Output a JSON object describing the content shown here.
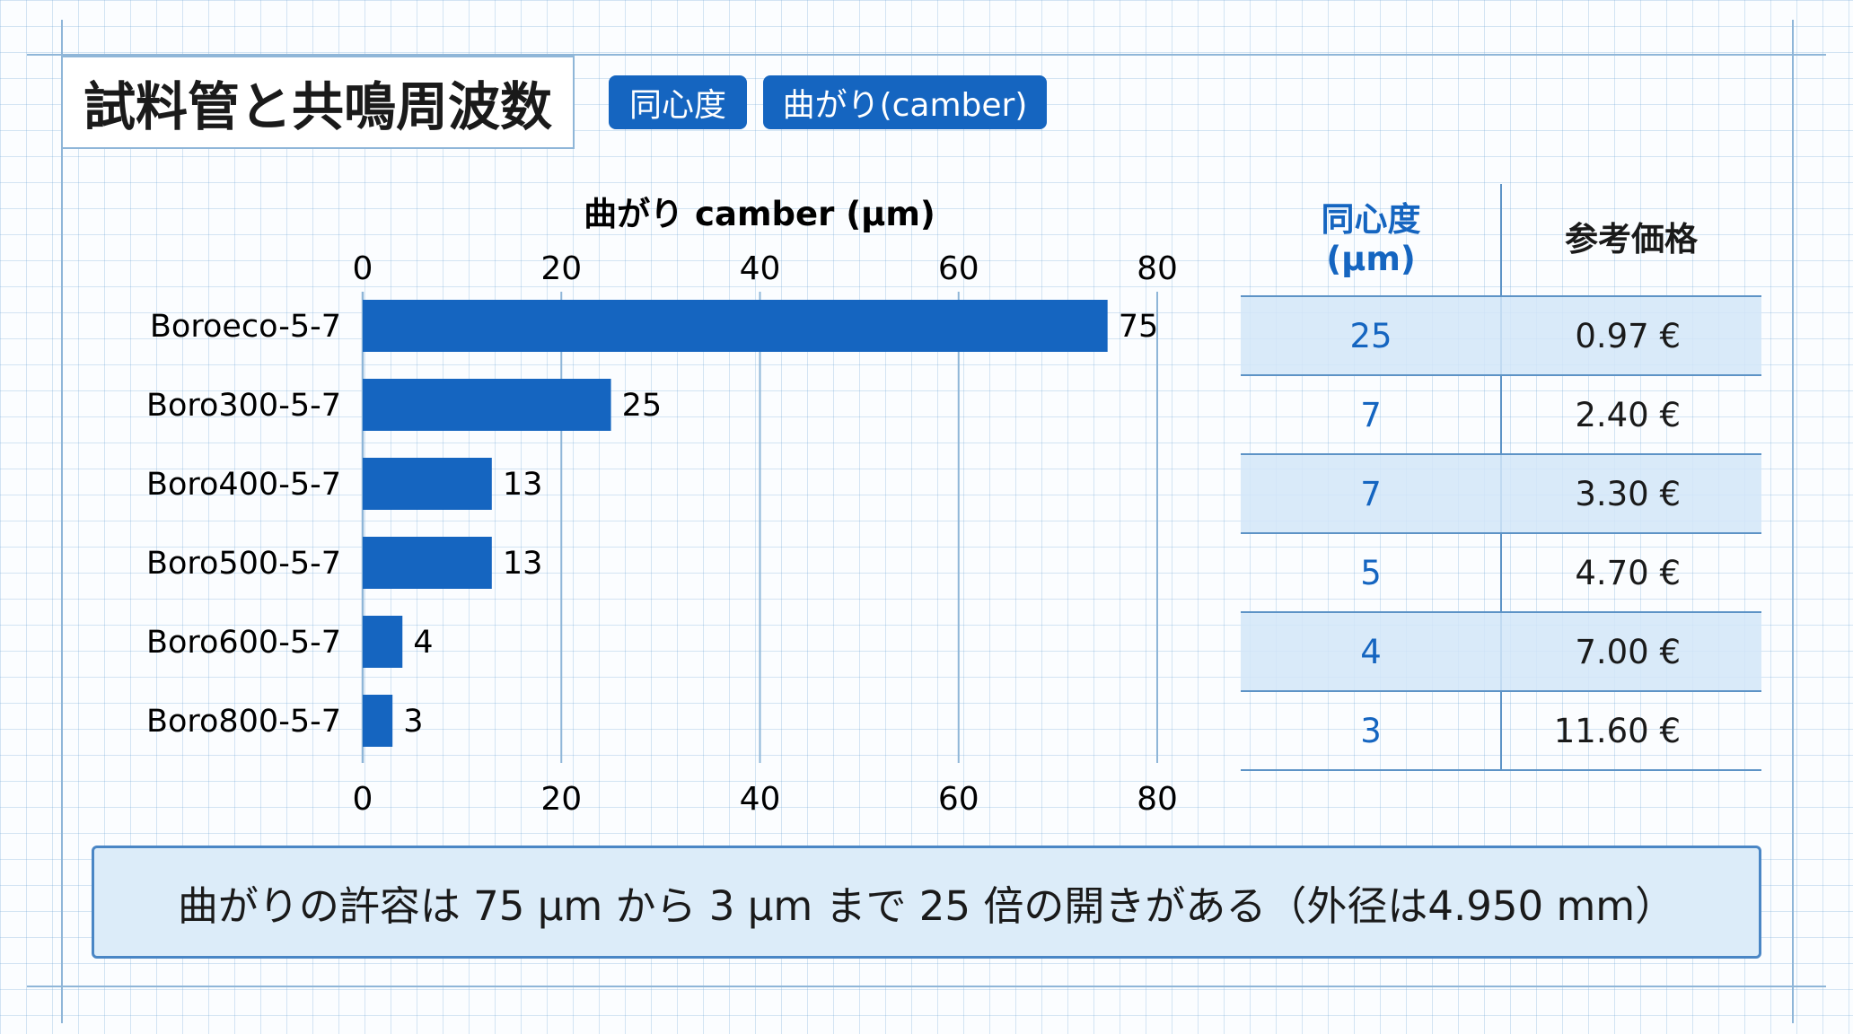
{
  "title": "試料管と共鳴周波数",
  "tabs": [
    {
      "label": "同心度"
    },
    {
      "label": "曲がり(camber)"
    }
  ],
  "colors": {
    "bar": "#1565c0",
    "accent": "#1565c0",
    "grid": "#8fb6d8"
  },
  "chart_data": {
    "type": "bar",
    "orientation": "horizontal",
    "xlabel": "曲がり camber (µm)",
    "xlim": [
      0,
      80
    ],
    "ticks": [
      0,
      20,
      40,
      60,
      80
    ],
    "grid": true,
    "categories": [
      "Boroeco-5-7",
      "Boro300-5-7",
      "Boro400-5-7",
      "Boro500-5-7",
      "Boro600-5-7",
      "Boro800-5-7"
    ],
    "values": [
      75,
      25,
      13,
      13,
      4,
      3
    ]
  },
  "table": {
    "headers": [
      {
        "line1": "同心度",
        "line2": "(µm)"
      },
      {
        "line1": "参考価格",
        "line2": ""
      }
    ],
    "rows": [
      {
        "concentricity": "25",
        "price": "0.97 €"
      },
      {
        "concentricity": "7",
        "price": "2.40 €"
      },
      {
        "concentricity": "7",
        "price": "3.30 €"
      },
      {
        "concentricity": "5",
        "price": "4.70 €"
      },
      {
        "concentricity": "4",
        "price": "7.00 €"
      },
      {
        "concentricity": "3",
        "price": "11.60 €"
      }
    ]
  },
  "note": "曲がりの許容は 75 µm から 3 µm まで 25 倍の開きがある（外径は4.950 mm）"
}
